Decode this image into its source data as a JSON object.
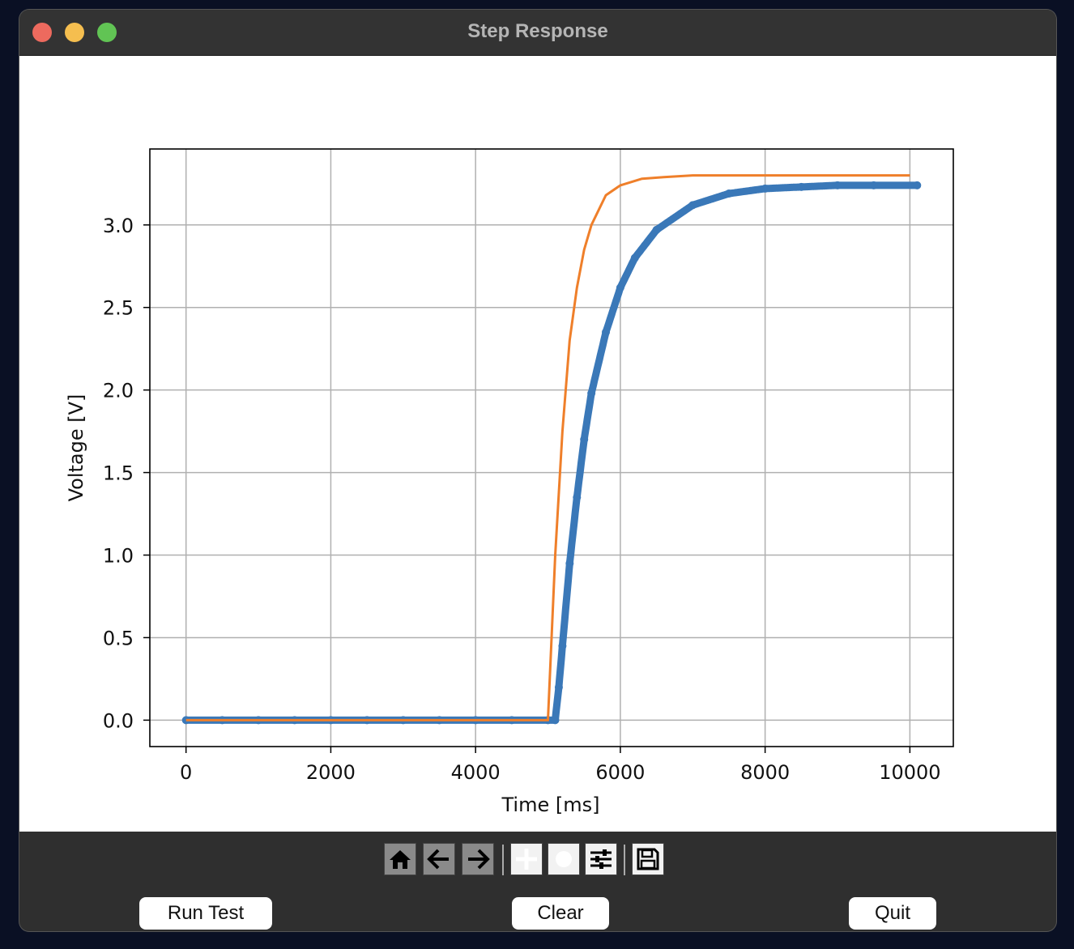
{
  "window": {
    "title": "Step Response"
  },
  "toolbar": {
    "icons": [
      "home-icon",
      "back-arrow-icon",
      "forward-arrow-icon",
      "pan-icon",
      "zoom-icon",
      "configure-subplots-icon",
      "save-icon"
    ]
  },
  "buttons": {
    "run_test": "Run Test",
    "clear": "Clear",
    "quit": "Quit"
  },
  "colors": {
    "measured": "#3a78b8",
    "model": "#ef7f2a",
    "grid": "#b0b0b0"
  },
  "chart_data": {
    "type": "line",
    "title": "",
    "xlabel": "Time [ms]",
    "ylabel": "Voltage [V]",
    "xlim": [
      -500,
      10600
    ],
    "ylim": [
      -0.16,
      3.46
    ],
    "xticks": [
      0,
      2000,
      4000,
      6000,
      8000,
      10000
    ],
    "xtick_labels": [
      "0",
      "2000",
      "4000",
      "6000",
      "8000",
      "10000"
    ],
    "yticks": [
      0.0,
      0.5,
      1.0,
      1.5,
      2.0,
      2.5,
      3.0
    ],
    "ytick_labels": [
      "0.0",
      "0.5",
      "1.0",
      "1.5",
      "2.0",
      "2.5",
      "3.0"
    ],
    "grid": true,
    "legend": "none",
    "series": [
      {
        "style": "scatter",
        "marker": "dot",
        "x": [
          0,
          500,
          1000,
          1500,
          2000,
          2500,
          3000,
          3500,
          4000,
          4500,
          5000,
          5100,
          5150,
          5200,
          5300,
          5400,
          5500,
          5600,
          5800,
          6000,
          6200,
          6500,
          7000,
          7500,
          8000,
          8500,
          9000,
          9500,
          10100
        ],
        "y": [
          0.0,
          0.0,
          0.0,
          0.0,
          0.0,
          0.0,
          0.0,
          0.0,
          0.0,
          0.0,
          0.0,
          0.0,
          0.2,
          0.45,
          0.95,
          1.35,
          1.7,
          1.98,
          2.35,
          2.62,
          2.8,
          2.97,
          3.12,
          3.19,
          3.22,
          3.23,
          3.24,
          3.24,
          3.24
        ]
      },
      {
        "style": "line",
        "x": [
          0,
          500,
          1000,
          1500,
          2000,
          2500,
          3000,
          3500,
          4000,
          4500,
          5000,
          5100,
          5200,
          5300,
          5400,
          5500,
          5600,
          5800,
          6000,
          6300,
          6600,
          7000,
          7500,
          8000,
          9000,
          10000
        ],
        "y": [
          0.0,
          0.0,
          0.0,
          0.0,
          0.0,
          0.0,
          0.0,
          0.0,
          0.0,
          0.0,
          0.0,
          1.0,
          1.75,
          2.3,
          2.62,
          2.85,
          3.0,
          3.18,
          3.24,
          3.28,
          3.29,
          3.3,
          3.3,
          3.3,
          3.3,
          3.3
        ]
      }
    ]
  }
}
